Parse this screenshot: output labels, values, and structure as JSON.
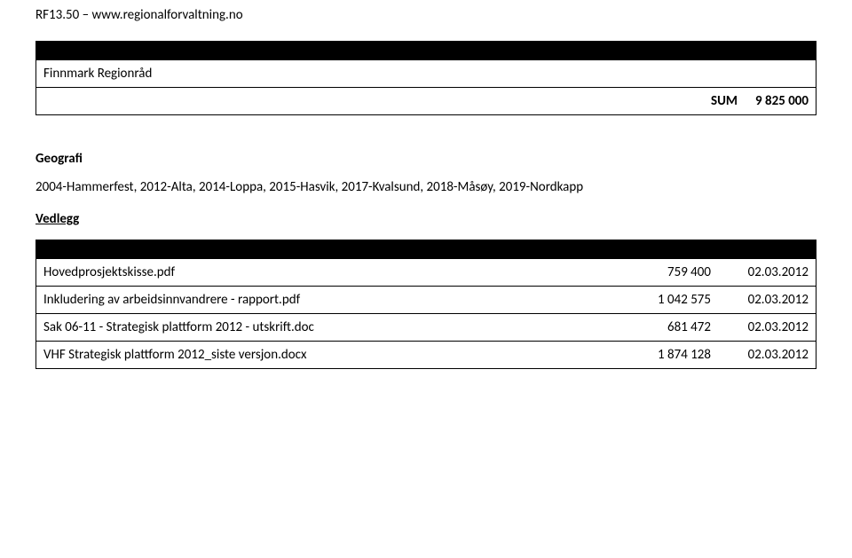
{
  "header": "RF13.50 – www.regionalforvaltning.no",
  "org_row": "Finnmark Regionråd",
  "sum_label": "SUM",
  "sum_value": "9 825 000",
  "sections": {
    "geografi_title": "Geografi",
    "geografi_text": "2004-Hammerfest, 2012-Alta, 2014-Loppa, 2015-Hasvik, 2017-Kvalsund, 2018-Måsøy, 2019-Nordkapp",
    "vedlegg_title": "Vedlegg"
  },
  "files": [
    {
      "name": "Hovedprosjektskisse.pdf",
      "size": "759 400",
      "date": "02.03.2012"
    },
    {
      "name": "Inkludering av arbeidsinnvandrere - rapport.pdf",
      "size": "1 042 575",
      "date": "02.03.2012"
    },
    {
      "name": "Sak 06-11 - Strategisk plattform 2012 - utskrift.doc",
      "size": "681 472",
      "date": "02.03.2012"
    },
    {
      "name": "VHF Strategisk plattform 2012_siste versjon.docx",
      "size": "1 874 128",
      "date": "02.03.2012"
    }
  ],
  "colors": {
    "text": "#000000",
    "bg": "#ffffff",
    "bar": "#000000",
    "border": "#000000"
  }
}
